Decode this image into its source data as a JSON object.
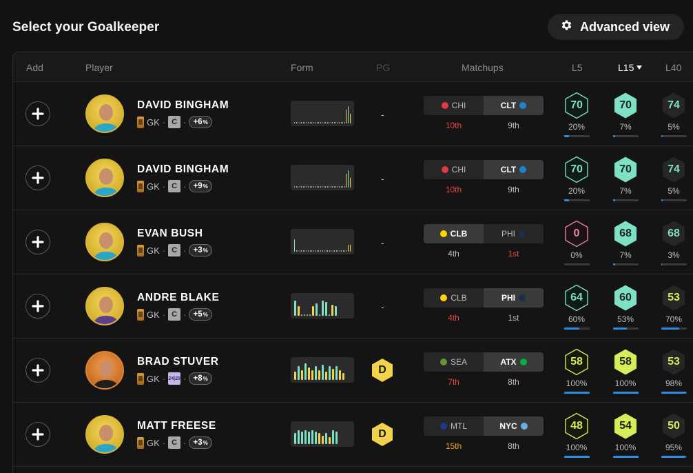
{
  "page_title": "Select your Goalkeeper",
  "advanced_view_label": "Advanced view",
  "headers": {
    "add": "Add",
    "player": "Player",
    "form": "Form",
    "pg": "PG",
    "matchups": "Matchups",
    "l5": "L5",
    "l15": "L15",
    "l40": "L40"
  },
  "colors": {
    "teal_hex": "#7ee0c4",
    "lime_hex": "#d8ec5a",
    "yellow": "#f1d24a",
    "red_rank": "#e5483f",
    "orange_rank": "#f1a51c",
    "blue_bar": "#2f8de4",
    "pink_hex": "#e8849a"
  },
  "rows": [
    {
      "name": "DAVID BINGHAM",
      "position": "GK",
      "badge": "C",
      "badge_year": false,
      "pct": "+6",
      "pg": "-",
      "pg_grade": null,
      "home": "CHI",
      "home_rank": "10th",
      "away": "CLT",
      "away_rank": "9th",
      "home_selected": false,
      "l5": "70",
      "l5_pct": "20%",
      "l5_fill": 20,
      "l5_style": "outline-teal",
      "l15": "70",
      "l15_pct": "7%",
      "l15_fill": 7,
      "l15_style": "filled-teal",
      "l40": "74",
      "l40_pct": "5%",
      "l40_fill": 5,
      "l40_style": "text-teal",
      "form": [
        0,
        0,
        0,
        0,
        0,
        0,
        0,
        0,
        0,
        0,
        0,
        0,
        0,
        0,
        0,
        0,
        0,
        0,
        0,
        0,
        0,
        0,
        0,
        0,
        0,
        0,
        0,
        0,
        0,
        0,
        20,
        25,
        14
      ],
      "form_color": [
        "d",
        "d",
        "d",
        "d",
        "d",
        "d",
        "d",
        "d",
        "d",
        "d",
        "d",
        "d",
        "d",
        "d",
        "d",
        "d",
        "d",
        "d",
        "d",
        "d",
        "d",
        "d",
        "d",
        "d",
        "d",
        "d",
        "d",
        "d",
        "d",
        "d",
        "y",
        "t",
        "y"
      ],
      "home_rank_color": "red",
      "away_rank_color": "grey",
      "avatar": "yellow"
    },
    {
      "name": "DAVID BINGHAM",
      "position": "GK",
      "badge": "C",
      "badge_year": false,
      "pct": "+9",
      "pg": "-",
      "pg_grade": null,
      "home": "CHI",
      "home_rank": "10th",
      "away": "CLT",
      "away_rank": "9th",
      "home_selected": false,
      "l5": "70",
      "l5_pct": "20%",
      "l5_fill": 20,
      "l5_style": "outline-teal",
      "l15": "70",
      "l15_pct": "7%",
      "l15_fill": 7,
      "l15_style": "filled-teal",
      "l40": "74",
      "l40_pct": "5%",
      "l40_fill": 5,
      "l40_style": "text-teal",
      "form": [
        0,
        0,
        0,
        0,
        0,
        0,
        0,
        0,
        0,
        0,
        0,
        0,
        0,
        0,
        0,
        0,
        0,
        0,
        0,
        0,
        0,
        0,
        0,
        0,
        0,
        0,
        0,
        0,
        0,
        0,
        20,
        25,
        14
      ],
      "form_color": [
        "d",
        "d",
        "d",
        "d",
        "d",
        "d",
        "d",
        "d",
        "d",
        "d",
        "d",
        "d",
        "d",
        "d",
        "d",
        "d",
        "d",
        "d",
        "d",
        "d",
        "d",
        "d",
        "d",
        "d",
        "d",
        "d",
        "d",
        "d",
        "d",
        "d",
        "y",
        "t",
        "y"
      ],
      "home_rank_color": "red",
      "away_rank_color": "grey",
      "avatar": "yellow"
    },
    {
      "name": "EVAN BUSH",
      "position": "GK",
      "badge": "C",
      "badge_year": false,
      "pct": "+3",
      "pg": "-",
      "pg_grade": null,
      "home": "CLB",
      "home_rank": "4th",
      "away": "PHI",
      "away_rank": "1st",
      "home_selected": true,
      "l5": "0",
      "l5_pct": "0%",
      "l5_fill": 0,
      "l5_style": "outline-pink",
      "l15": "68",
      "l15_pct": "7%",
      "l15_fill": 7,
      "l15_style": "filled-teal",
      "l40": "68",
      "l40_pct": "3%",
      "l40_fill": 3,
      "l40_style": "text-teal",
      "form": [
        18,
        0,
        0,
        0,
        0,
        0,
        0,
        0,
        0,
        0,
        0,
        0,
        0,
        0,
        0,
        0,
        0,
        0,
        0,
        0,
        0,
        0,
        0,
        0,
        0,
        0,
        0,
        0,
        0,
        0,
        0,
        10,
        10
      ],
      "form_color": [
        "t",
        "d",
        "d",
        "d",
        "d",
        "d",
        "d",
        "d",
        "d",
        "d",
        "d",
        "d",
        "d",
        "d",
        "d",
        "d",
        "d",
        "d",
        "d",
        "d",
        "d",
        "d",
        "d",
        "d",
        "d",
        "d",
        "d",
        "d",
        "d",
        "d",
        "d",
        "y",
        "y"
      ],
      "home_rank_color": "grey",
      "away_rank_color": "red",
      "avatar": "yellow"
    },
    {
      "name": "ANDRE BLAKE",
      "position": "GK",
      "badge": "C",
      "badge_year": false,
      "pct": "+5",
      "pg": "-",
      "pg_grade": null,
      "home": "CLB",
      "home_rank": "4th",
      "away": "PHI",
      "away_rank": "1st",
      "home_selected": false,
      "l5": "64",
      "l5_pct": "60%",
      "l5_fill": 60,
      "l5_style": "outline-teal",
      "l15": "60",
      "l15_pct": "53%",
      "l15_fill": 53,
      "l15_style": "filled-teal",
      "l40": "53",
      "l40_pct": "70%",
      "l40_fill": 70,
      "l40_style": "text-lime",
      "form": [
        22,
        14,
        0,
        0,
        0,
        0,
        14,
        18,
        0,
        22,
        20,
        0,
        16,
        14
      ],
      "form_color": [
        "t",
        "y",
        "d",
        "d",
        "d",
        "d",
        "y",
        "t",
        "d",
        "t",
        "t",
        "d",
        "y",
        "t"
      ],
      "home_rank_color": "red",
      "away_rank_color": "grey",
      "avatar": "yellow"
    },
    {
      "name": "BRAD STUVER",
      "position": "GK",
      "badge": "24|25",
      "badge_year": true,
      "pct": "+8",
      "pg": "",
      "pg_grade": "D",
      "home": "SEA",
      "home_rank": "7th",
      "away": "ATX",
      "away_rank": "8th",
      "home_selected": false,
      "l5": "58",
      "l5_pct": "100%",
      "l5_fill": 100,
      "l5_style": "outline-lime",
      "l15": "58",
      "l15_pct": "100%",
      "l15_fill": 100,
      "l15_style": "filled-lime",
      "l40": "53",
      "l40_pct": "98%",
      "l40_fill": 98,
      "l40_style": "text-lime",
      "form": [
        12,
        20,
        14,
        24,
        18,
        14,
        20,
        14,
        22,
        12,
        20,
        16,
        20,
        14,
        10
      ],
      "form_color": [
        "y",
        "t",
        "y",
        "t",
        "y",
        "y",
        "t",
        "y",
        "t",
        "y",
        "t",
        "y",
        "t",
        "y",
        "y"
      ],
      "home_rank_color": "red",
      "away_rank_color": "grey",
      "avatar": "orange"
    },
    {
      "name": "MATT FREESE",
      "position": "GK",
      "badge": "C",
      "badge_year": false,
      "pct": "+3",
      "pg": "",
      "pg_grade": "D",
      "home": "MTL",
      "home_rank": "15th",
      "away": "NYC",
      "away_rank": "8th",
      "home_selected": false,
      "l5": "48",
      "l5_pct": "100%",
      "l5_fill": 100,
      "l5_style": "outline-lime",
      "l15": "54",
      "l15_pct": "100%",
      "l15_fill": 100,
      "l15_style": "filled-lime",
      "l40": "50",
      "l40_pct": "95%",
      "l40_fill": 95,
      "l40_style": "text-lime",
      "form": [
        16,
        20,
        18,
        20,
        18,
        20,
        18,
        16,
        12,
        16,
        10,
        20,
        18
      ],
      "form_color": [
        "t",
        "t",
        "t",
        "t",
        "t",
        "t",
        "t",
        "y",
        "y",
        "t",
        "y",
        "t",
        "t"
      ],
      "home_rank_color": "orange",
      "away_rank_color": "grey",
      "avatar": "yellow"
    }
  ]
}
